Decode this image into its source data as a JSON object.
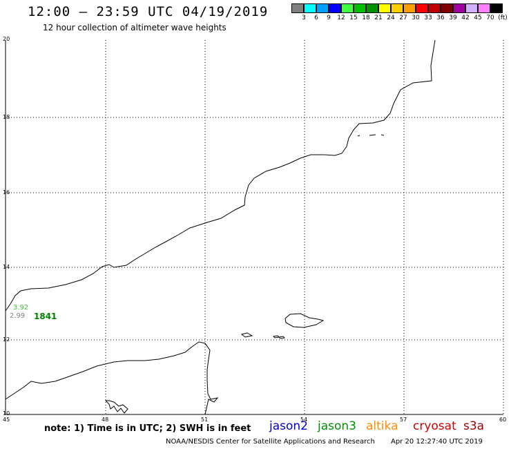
{
  "header": {
    "title": "12:00 – 23:59 UTC 04/19/2019",
    "subtitle": "12 hour collection of altimeter wave heights"
  },
  "legend": {
    "colors": [
      "#808080",
      "#00ffff",
      "#00a0ff",
      "#0000ff",
      "#40ff40",
      "#00c000",
      "#009000",
      "#ffff00",
      "#ffd000",
      "#ffa000",
      "#ff0000",
      "#c00000",
      "#800000",
      "#a000a0",
      "#d0b0ff",
      "#ff80ff",
      "#000000"
    ],
    "labels": [
      "3",
      "6",
      "9",
      "12",
      "15",
      "18",
      "21",
      "24",
      "27",
      "30",
      "33",
      "36",
      "39",
      "42",
      "45",
      "70",
      "(ft)"
    ]
  },
  "axes": {
    "x_ticks": [
      "45",
      "48",
      "51",
      "54",
      "57",
      "60"
    ],
    "y_ticks": [
      "20",
      "18",
      "16",
      "14",
      "12",
      "10"
    ]
  },
  "observations": [
    {
      "value": "3.92",
      "color": "#40c040"
    },
    {
      "value": "2.99",
      "color": "#808080"
    },
    {
      "value": "1841",
      "color": "#008000"
    }
  ],
  "footer": {
    "note": "note: 1) Time is in UTC; 2) SWH is in feet",
    "satellites": [
      {
        "name": "jason2",
        "color": "#0000cc"
      },
      {
        "name": "jason3",
        "color": "#009000"
      },
      {
        "name": "altika",
        "color": "#ff8c00"
      },
      {
        "name": "cryosat",
        "color": "#cc0000"
      },
      {
        "name": "s3a",
        "color": "#990000"
      }
    ],
    "credit": "NOAA/NESDIS Center for Satellite Applications and Research",
    "timestamp": "Apr 20 12:27:40 UTC 2019"
  }
}
